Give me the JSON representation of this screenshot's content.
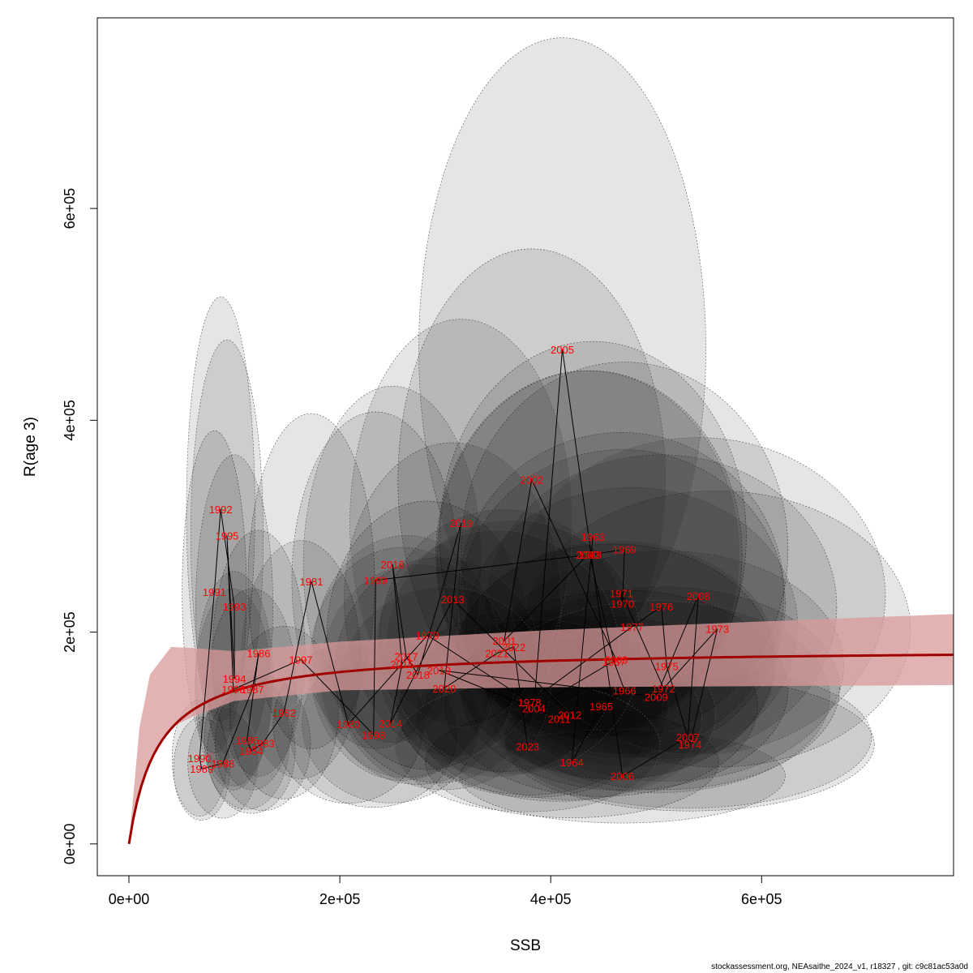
{
  "chart_data": {
    "type": "scatter",
    "xlabel": "SSB",
    "ylabel": "R(age 3)",
    "xlim": [
      -30000,
      782000
    ],
    "ylim": [
      -30000,
      780000
    ],
    "xticks": [
      0,
      200000,
      400000,
      600000
    ],
    "xtick_labels": [
      "0e+00",
      "2e+05",
      "4e+05",
      "6e+05"
    ],
    "yticks": [
      0,
      200000,
      400000,
      600000
    ],
    "ytick_labels": [
      "0e+00",
      "2e+05",
      "4e+05",
      "6e+05"
    ],
    "grid": false,
    "legend": "none",
    "colors": {
      "points": "#ff0000",
      "curve": "#a00000",
      "band": "#d99a9a",
      "ellipse_fill": "#000000",
      "path": "#000000"
    },
    "fit_curve": {
      "a": 185000,
      "b": 28000
    },
    "fit_band": {
      "lower": [
        [
          0,
          0
        ],
        [
          10000,
          45000
        ],
        [
          20000,
          80000
        ],
        [
          40000,
          110000
        ],
        [
          60000,
          120000
        ],
        [
          100000,
          135000
        ],
        [
          200000,
          145000
        ],
        [
          400000,
          148000
        ],
        [
          600000,
          149000
        ],
        [
          782000,
          150000
        ]
      ],
      "upper": [
        [
          0,
          0
        ],
        [
          10000,
          110000
        ],
        [
          20000,
          160000
        ],
        [
          40000,
          186000
        ],
        [
          60000,
          185000
        ],
        [
          100000,
          182000
        ],
        [
          200000,
          191000
        ],
        [
          400000,
          202000
        ],
        [
          600000,
          210000
        ],
        [
          782000,
          217000
        ]
      ]
    },
    "points": [
      {
        "year": "1963",
        "x": 440000,
        "y": 290000
      },
      {
        "year": "1964",
        "x": 420000,
        "y": 77000
      },
      {
        "year": "1965",
        "x": 448000,
        "y": 130000
      },
      {
        "year": "1966",
        "x": 470000,
        "y": 145000
      },
      {
        "year": "1967",
        "x": 460000,
        "y": 172000
      },
      {
        "year": "1968",
        "x": 437000,
        "y": 273000
      },
      {
        "year": "1969",
        "x": 470000,
        "y": 278000
      },
      {
        "year": "1970",
        "x": 468000,
        "y": 227000
      },
      {
        "year": "1971",
        "x": 467000,
        "y": 237000
      },
      {
        "year": "1972",
        "x": 507000,
        "y": 147000
      },
      {
        "year": "1973",
        "x": 558000,
        "y": 203000
      },
      {
        "year": "1974",
        "x": 532000,
        "y": 94000
      },
      {
        "year": "1975",
        "x": 510000,
        "y": 168000
      },
      {
        "year": "1976",
        "x": 505000,
        "y": 224000
      },
      {
        "year": "1977",
        "x": 477000,
        "y": 205000
      },
      {
        "year": "1978",
        "x": 380000,
        "y": 134000
      },
      {
        "year": "1979",
        "x": 283000,
        "y": 197000
      },
      {
        "year": "1980",
        "x": 208000,
        "y": 113000
      },
      {
        "year": "1981",
        "x": 173000,
        "y": 248000
      },
      {
        "year": "1982",
        "x": 147000,
        "y": 124000
      },
      {
        "year": "1983",
        "x": 127000,
        "y": 95000
      },
      {
        "year": "1984",
        "x": 116000,
        "y": 88000
      },
      {
        "year": "1985",
        "x": 112000,
        "y": 98000
      },
      {
        "year": "1986",
        "x": 123000,
        "y": 180000
      },
      {
        "year": "1987",
        "x": 117000,
        "y": 146000
      },
      {
        "year": "1988",
        "x": 89000,
        "y": 76000
      },
      {
        "year": "1989",
        "x": 69000,
        "y": 71000
      },
      {
        "year": "1990",
        "x": 67000,
        "y": 81000
      },
      {
        "year": "1991",
        "x": 81000,
        "y": 238000
      },
      {
        "year": "1992",
        "x": 87000,
        "y": 316000
      },
      {
        "year": "1993",
        "x": 100000,
        "y": 224000
      },
      {
        "year": "1994",
        "x": 100000,
        "y": 156000
      },
      {
        "year": "1995",
        "x": 93000,
        "y": 291000
      },
      {
        "year": "1996",
        "x": 99000,
        "y": 146000
      },
      {
        "year": "1997",
        "x": 163000,
        "y": 174000
      },
      {
        "year": "1998",
        "x": 232000,
        "y": 103000
      },
      {
        "year": "1999",
        "x": 234000,
        "y": 249000
      },
      {
        "year": "2000",
        "x": 435000,
        "y": 273000
      },
      {
        "year": "2001",
        "x": 356000,
        "y": 192000
      },
      {
        "year": "2002",
        "x": 382000,
        "y": 344000
      },
      {
        "year": "2003",
        "x": 462000,
        "y": 174000
      },
      {
        "year": "2004",
        "x": 384000,
        "y": 128000
      },
      {
        "year": "2005",
        "x": 411000,
        "y": 467000
      },
      {
        "year": "2006",
        "x": 468000,
        "y": 64000
      },
      {
        "year": "2007",
        "x": 530000,
        "y": 101000
      },
      {
        "year": "2008",
        "x": 540000,
        "y": 234000
      },
      {
        "year": "2009",
        "x": 500000,
        "y": 139000
      },
      {
        "year": "2010",
        "x": 294000,
        "y": 164000
      },
      {
        "year": "2011",
        "x": 408000,
        "y": 118000
      },
      {
        "year": "2012",
        "x": 418000,
        "y": 122000
      },
      {
        "year": "2013",
        "x": 307000,
        "y": 231000
      },
      {
        "year": "2014",
        "x": 248000,
        "y": 114000
      },
      {
        "year": "2015",
        "x": 259000,
        "y": 170000
      },
      {
        "year": "2016",
        "x": 250000,
        "y": 264000
      },
      {
        "year": "2017",
        "x": 263000,
        "y": 177000
      },
      {
        "year": "2018",
        "x": 274000,
        "y": 160000
      },
      {
        "year": "2019",
        "x": 315000,
        "y": 303000
      },
      {
        "year": "2020",
        "x": 299000,
        "y": 147000
      },
      {
        "year": "2021",
        "x": 349000,
        "y": 180000
      },
      {
        "year": "2022",
        "x": 365000,
        "y": 186000
      },
      {
        "year": "2023",
        "x": 378000,
        "y": 92000
      }
    ]
  },
  "footer": "stockassessment.org, NEAsaithe_2024_v1, r18327 , git: c9c81ac53a0d"
}
